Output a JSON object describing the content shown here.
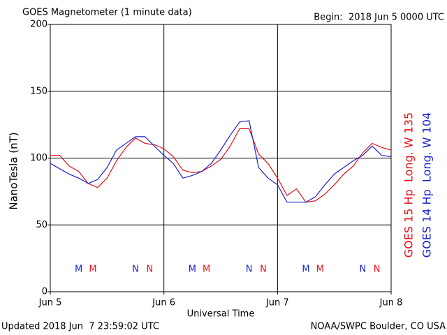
{
  "chart_data": {
    "type": "line",
    "title": "GOES Magnetometer (1 minute data)",
    "subtitle": "Begin:  2018 Jun 5 0000 UTC",
    "ylabel": "NanoTesla (nT)",
    "xlabel": "Universal Time",
    "footer_left": "Updated 2018 Jun  7 23:59:02 UTC",
    "footer_right": "NOAA/SWPC Boulder, CO USA",
    "x": [
      0,
      2,
      4,
      6,
      8,
      10,
      12,
      14,
      16,
      18,
      20,
      22,
      24,
      26,
      28,
      30,
      32,
      34,
      36,
      38,
      40,
      42,
      44,
      46,
      48,
      50,
      52,
      54,
      56,
      58,
      60,
      62,
      64,
      66,
      68,
      70,
      72
    ],
    "series": [
      {
        "name": "GOES 15 Hp  Long. W 135",
        "color": "#e8101a",
        "values": [
          102,
          102,
          94,
          90,
          81,
          78,
          85,
          98,
          108,
          115,
          111,
          110,
          107,
          101,
          91,
          89,
          90,
          94,
          99,
          109,
          122,
          122,
          103,
          96,
          85,
          72,
          77,
          67,
          68,
          73,
          80,
          88,
          94,
          104,
          111,
          108,
          106
        ]
      },
      {
        "name": "GOES 14 Hp  Long. W 104",
        "color": "#1a22d0",
        "values": [
          96,
          92,
          88,
          85,
          81,
          84,
          93,
          106,
          111,
          116,
          116,
          109,
          102,
          96,
          85,
          87,
          90,
          96,
          106,
          117,
          127,
          128,
          93,
          85,
          80,
          67,
          67,
          67,
          71,
          80,
          88,
          93,
          98,
          102,
          109,
          102,
          101
        ]
      }
    ],
    "annotations": [
      {
        "text": "M",
        "x": 6,
        "series": 1
      },
      {
        "text": "M",
        "x": 9,
        "series": 0
      },
      {
        "text": "N",
        "x": 18,
        "series": 1
      },
      {
        "text": "N",
        "x": 21,
        "series": 0
      },
      {
        "text": "M",
        "x": 30,
        "series": 1
      },
      {
        "text": "M",
        "x": 33,
        "series": 0
      },
      {
        "text": "N",
        "x": 42,
        "series": 1
      },
      {
        "text": "N",
        "x": 45,
        "series": 0
      },
      {
        "text": "M",
        "x": 54,
        "series": 1
      },
      {
        "text": "M",
        "x": 57,
        "series": 0
      },
      {
        "text": "N",
        "x": 66,
        "series": 1
      },
      {
        "text": "N",
        "x": 69,
        "series": 0
      }
    ],
    "xlim": [
      0,
      72
    ],
    "xticks": [
      {
        "value": 0,
        "label": "Jun 5"
      },
      {
        "value": 24,
        "label": "Jun 6"
      },
      {
        "value": 48,
        "label": "Jun 7"
      },
      {
        "value": 72,
        "label": "Jun 8"
      }
    ],
    "ylim": [
      0,
      200
    ],
    "yticks": [
      0,
      50,
      100,
      150,
      200
    ],
    "grid": true
  }
}
